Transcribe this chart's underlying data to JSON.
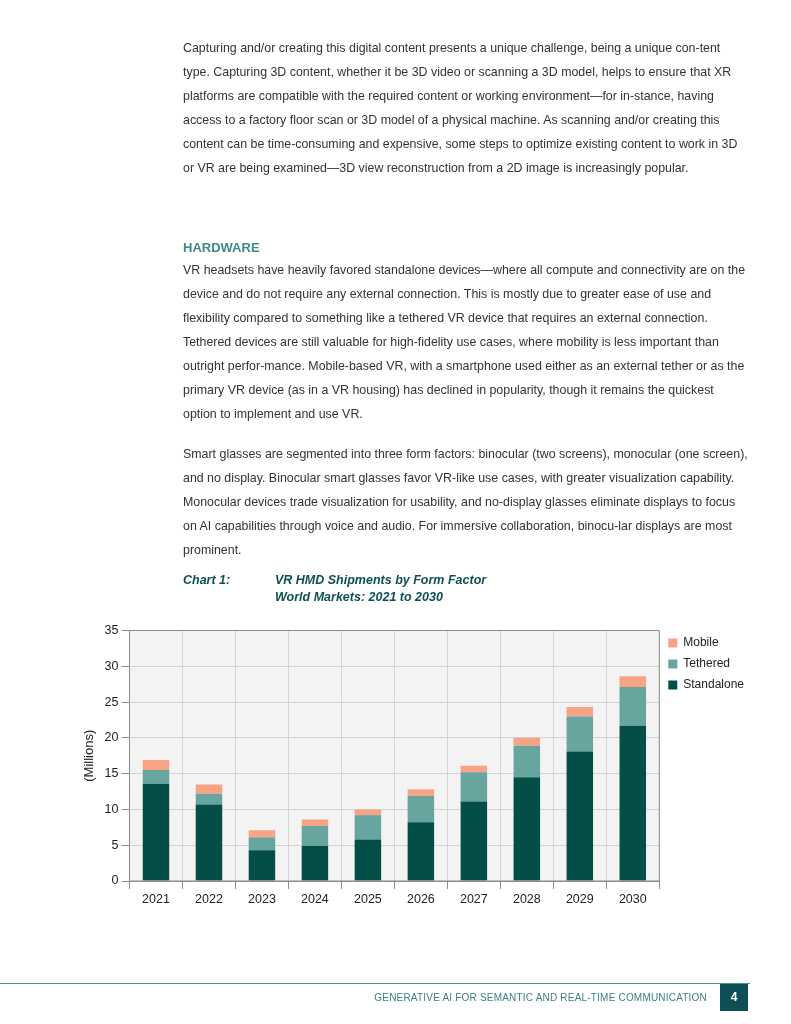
{
  "chart_data": {
    "type": "bar",
    "title": "VR HMD Shipments by Form Factor",
    "subtitle": "World Markets: 2021 to 2030",
    "ylabel": "(Millions)",
    "categories": [
      "2021",
      "2022",
      "2023",
      "2024",
      "2025",
      "2026",
      "2027",
      "2028",
      "2029",
      "2030"
    ],
    "series": [
      {
        "name": "Standalone",
        "color": "#034f48",
        "values": [
          13.6,
          10.7,
          4.3,
          4.9,
          5.8,
          8.2,
          11.1,
          14.5,
          18.1,
          21.7
        ]
      },
      {
        "name": "Tethered",
        "color": "#68a59f",
        "values": [
          1.9,
          1.5,
          1.8,
          2.8,
          3.4,
          3.7,
          4.1,
          4.4,
          4.9,
          5.4
        ]
      },
      {
        "name": "Mobile",
        "color": "#f9a386",
        "values": [
          1.4,
          1.3,
          1.0,
          0.9,
          0.8,
          0.9,
          0.9,
          1.1,
          1.3,
          1.5
        ]
      }
    ],
    "stacked": true,
    "ylim": [
      0,
      35
    ],
    "yticks": [
      0,
      5,
      10,
      15,
      20,
      25,
      30,
      35
    ],
    "grid": true,
    "legend": "top right",
    "annotations": [
      "Capturing and/or creating this digital content presents a unique challenge, being a unique con-tent type. Capturing 3D content, whether it be 3D video or scanning a 3D model, helps to ensure that XR platforms are compatible with the required content or working environment—for in-stance, having access to a factory floor scan or 3D model of a physical machine. As scanning and/or creating this content can be time-consuming and expensive, some steps to optimize existing content to work in 3D or VR are being examined—3D view reconstruction from a 2D image is increasingly popular.",
      "HARDWARE",
      "VR headsets have heavily favored standalone devices—where all compute and connectivity are on the device and do not require any external connection. This is mostly due to greater ease of use and flexibility compared to something like a tethered VR device that requires an external connection. Tethered devices are still valuable for high-fidelity use cases, where mobility is less important than outright perfor-mance. Mobile-based VR, with a smartphone used either as an external tether or as the primary VR device (as in a VR housing) has declined in popularity, though it remains the quickest option to implement and use VR.",
      "Smart glasses are segmented into three form factors: binocular (two screens), monocular (one screen), and no display. Binocular smart glasses favor VR-like use cases, with greater visualization capability. Monocular devices trade visualization for usability, and no-display glasses eliminate displays to focus on AI capabilities through voice and audio. For immersive collaboration, binocu-lar displays are most prominent.",
      "Chart 1:",
      "GENERATIVE AI FOR SEMANTIC AND REAL-TIME COMMUNICATION",
      "4"
    ]
  }
}
